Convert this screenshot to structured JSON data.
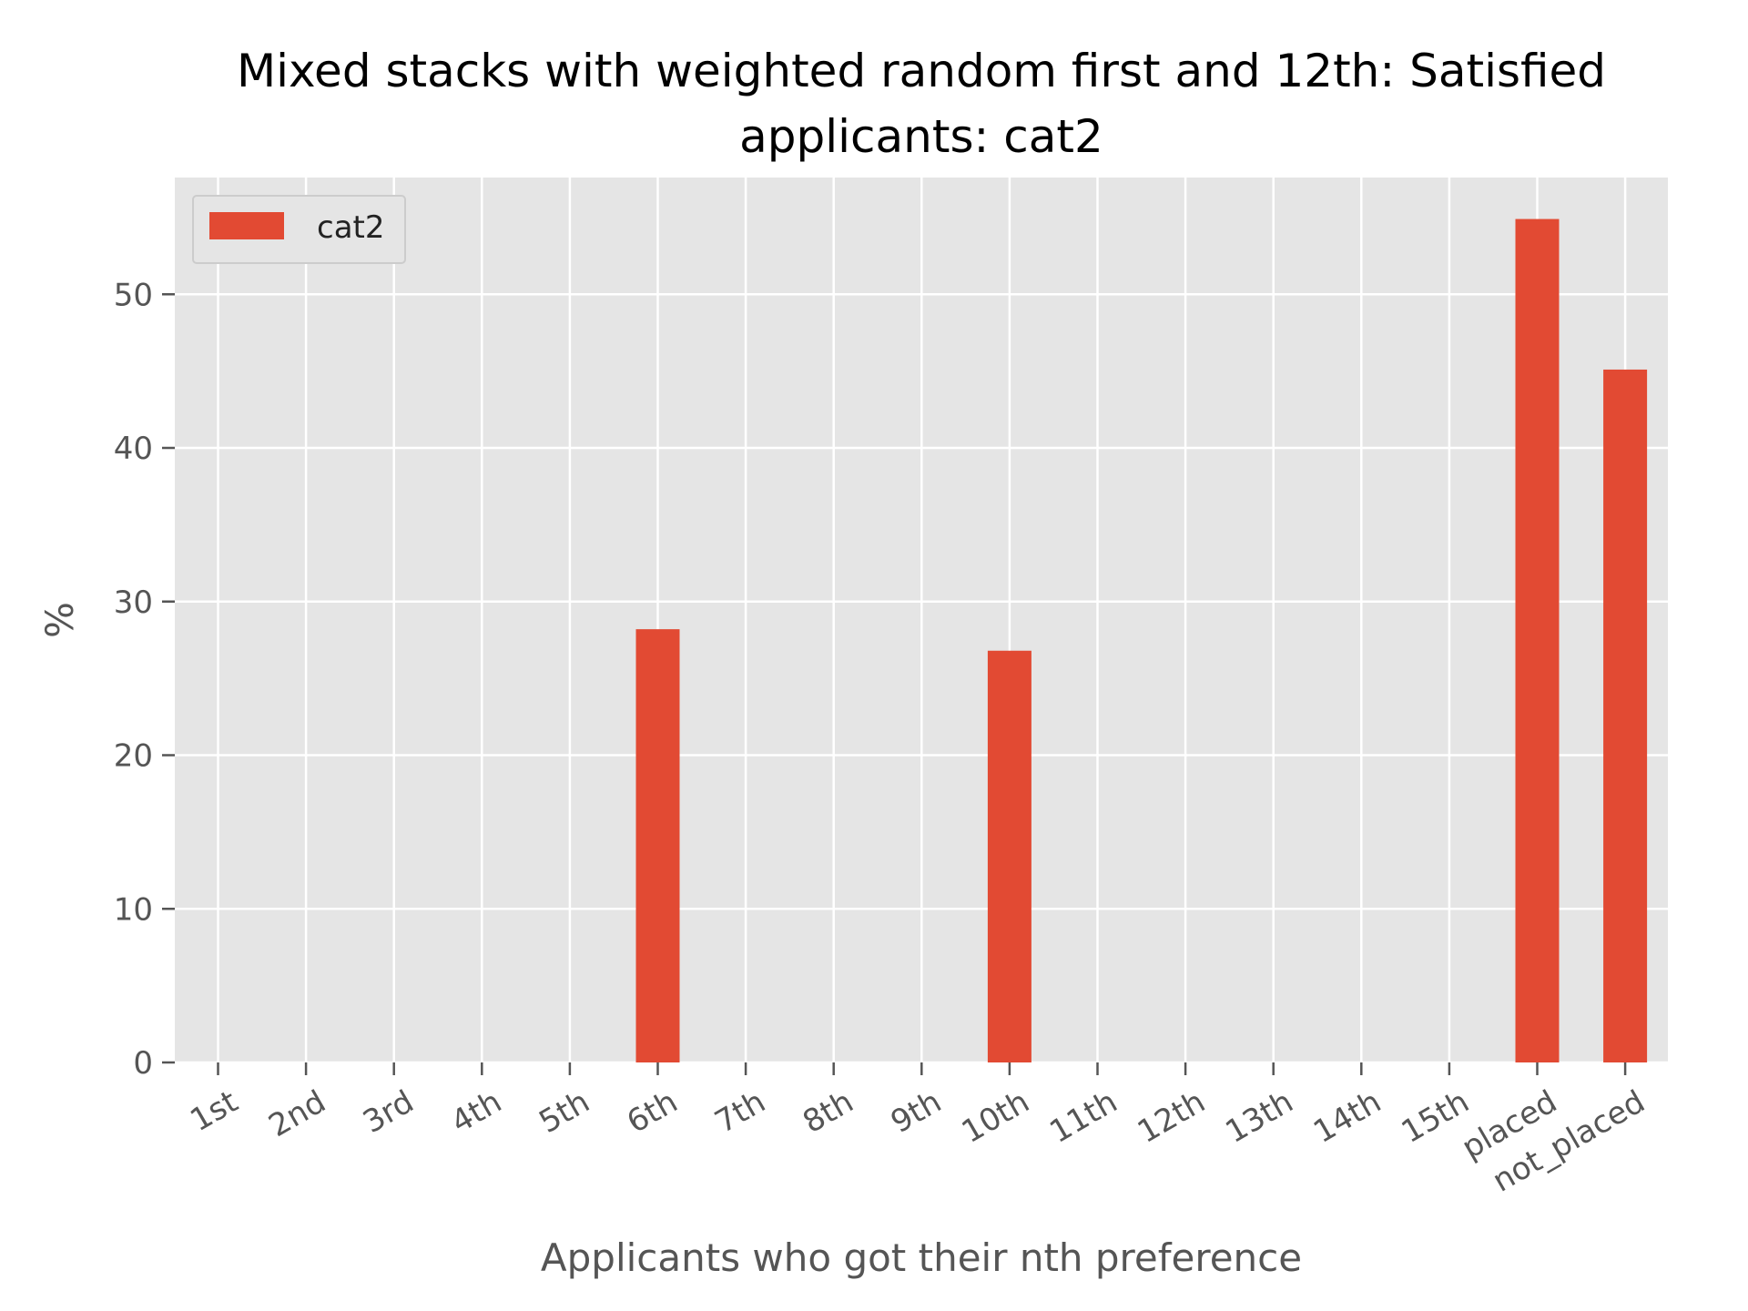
{
  "chart_data": {
    "type": "bar",
    "title_lines": [
      "Mixed stacks with weighted random first and 12th: Satisfied",
      "applicants: cat2"
    ],
    "xlabel": "Applicants who got their nth preference",
    "ylabel": "%",
    "categories": [
      "1st",
      "2nd",
      "3rd",
      "4th",
      "5th",
      "6th",
      "7th",
      "8th",
      "9th",
      "10th",
      "11th",
      "12th",
      "13th",
      "14th",
      "15th",
      "placed",
      "not_placed"
    ],
    "series": [
      {
        "name": "cat2",
        "color": "#E24A33",
        "values": [
          0,
          0,
          0,
          0,
          0,
          28.2,
          0,
          0,
          0,
          26.8,
          0,
          0,
          0,
          0,
          0,
          54.9,
          45.1
        ]
      }
    ],
    "yticks": [
      "0",
      "10",
      "20",
      "30",
      "40",
      "50"
    ],
    "ylim": [
      0,
      57.6
    ],
    "grid": true,
    "legend_position": "top-left",
    "style": {
      "plot_background": "#E5E5E5",
      "grid_color": "#FFFFFF"
    }
  }
}
